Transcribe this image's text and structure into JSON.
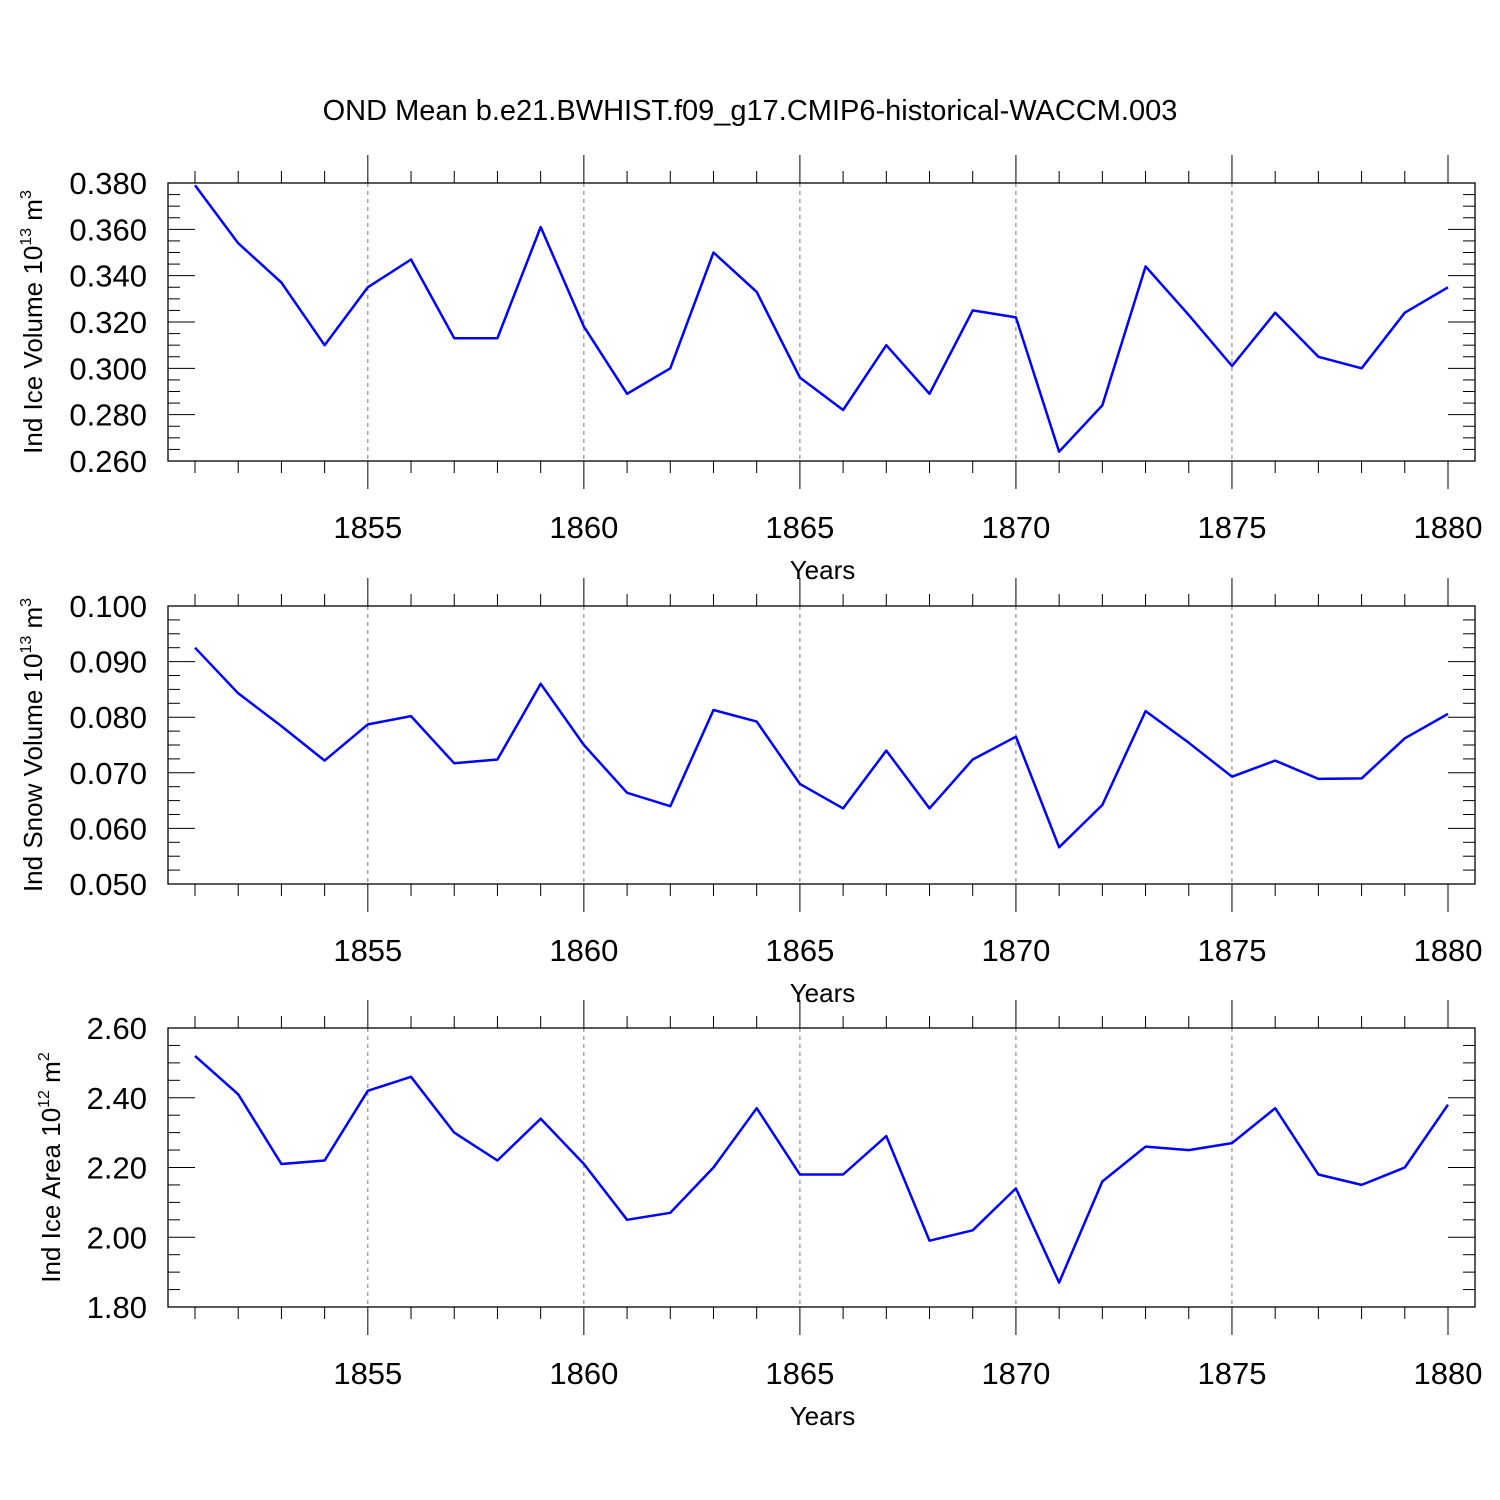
{
  "title": "OND Mean b.e21.BWHIST.f09_g17.CMIP6-historical-WACCM.003",
  "colors": {
    "line": "#0000ff",
    "axis": "#000000",
    "grid": "#777777"
  },
  "chart_data": [
    {
      "type": "line",
      "ylabel": {
        "base": "Ind Ice Volume 10",
        "exponent": "13",
        "unit": " m",
        "unit_exponent": "3"
      },
      "xlabel": "Years",
      "xlim": [
        1851,
        1880
      ],
      "ylim": [
        0.26,
        0.38
      ],
      "yticks": [
        "0.260",
        "0.280",
        "0.300",
        "0.320",
        "0.340",
        "0.360",
        "0.380"
      ],
      "xticks": [
        "1855",
        "1860",
        "1865",
        "1870",
        "1875",
        "1880"
      ],
      "grid": "vertical dashed at 5-year ticks",
      "x": [
        1851,
        1852,
        1853,
        1854,
        1855,
        1856,
        1857,
        1858,
        1859,
        1860,
        1861,
        1862,
        1863,
        1864,
        1865,
        1866,
        1867,
        1868,
        1869,
        1870,
        1871,
        1872,
        1873,
        1874,
        1875,
        1876,
        1877,
        1878,
        1879,
        1880
      ],
      "values": [
        0.379,
        0.354,
        0.337,
        0.31,
        0.335,
        0.347,
        0.313,
        0.313,
        0.361,
        0.318,
        0.289,
        0.3,
        0.35,
        0.333,
        0.296,
        0.282,
        0.31,
        0.289,
        0.325,
        0.322,
        0.264,
        0.284,
        0.344,
        0.323,
        0.301,
        0.324,
        0.305,
        0.3,
        0.324,
        0.335
      ]
    },
    {
      "type": "line",
      "ylabel": {
        "base": "Ind Snow Volume 10",
        "exponent": "13",
        "unit": " m",
        "unit_exponent": "3"
      },
      "xlabel": "Years",
      "xlim": [
        1851,
        1880
      ],
      "ylim": [
        0.05,
        0.1
      ],
      "yticks": [
        "0.050",
        "0.060",
        "0.070",
        "0.080",
        "0.090",
        "0.100"
      ],
      "xticks": [
        "1855",
        "1860",
        "1865",
        "1870",
        "1875",
        "1880"
      ],
      "grid": "vertical dashed at 5-year ticks",
      "x": [
        1851,
        1852,
        1853,
        1854,
        1855,
        1856,
        1857,
        1858,
        1859,
        1860,
        1861,
        1862,
        1863,
        1864,
        1865,
        1866,
        1867,
        1868,
        1869,
        1870,
        1871,
        1872,
        1873,
        1874,
        1875,
        1876,
        1877,
        1878,
        1879,
        1880
      ],
      "values": [
        0.0925,
        0.0843,
        0.0784,
        0.0722,
        0.0787,
        0.0802,
        0.0717,
        0.0724,
        0.086,
        0.075,
        0.0664,
        0.064,
        0.0813,
        0.0792,
        0.068,
        0.0636,
        0.074,
        0.0636,
        0.0724,
        0.0765,
        0.0566,
        0.0642,
        0.0811,
        0.0754,
        0.0693,
        0.0722,
        0.0689,
        0.069,
        0.0762,
        0.0806
      ]
    },
    {
      "type": "line",
      "ylabel": {
        "base": "Ind Ice Area 10",
        "exponent": "12",
        "unit": " m",
        "unit_exponent": "2"
      },
      "xlabel": "Years",
      "xlim": [
        1851,
        1880
      ],
      "ylim": [
        1.8,
        2.6
      ],
      "yticks": [
        "1.80",
        "2.00",
        "2.20",
        "2.40",
        "2.60"
      ],
      "xticks": [
        "1855",
        "1860",
        "1865",
        "1870",
        "1875",
        "1880"
      ],
      "grid": "vertical dashed at 5-year ticks",
      "x": [
        1851,
        1852,
        1853,
        1854,
        1855,
        1856,
        1857,
        1858,
        1859,
        1860,
        1861,
        1862,
        1863,
        1864,
        1865,
        1866,
        1867,
        1868,
        1869,
        1870,
        1871,
        1872,
        1873,
        1874,
        1875,
        1876,
        1877,
        1878,
        1879,
        1880
      ],
      "values": [
        2.52,
        2.41,
        2.21,
        2.22,
        2.42,
        2.46,
        2.3,
        2.22,
        2.34,
        2.21,
        2.05,
        2.07,
        2.2,
        2.37,
        2.18,
        2.18,
        2.29,
        1.99,
        2.02,
        2.14,
        1.87,
        2.16,
        2.26,
        2.25,
        2.27,
        2.37,
        2.18,
        2.15,
        2.2,
        2.38
      ]
    }
  ]
}
